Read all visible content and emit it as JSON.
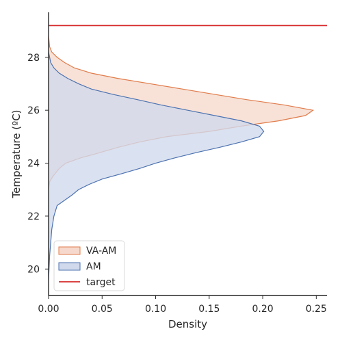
{
  "chart_data": {
    "type": "area",
    "orientation": "horizontal-density",
    "xlabel": "Density",
    "ylabel": "Temperature (ºC)",
    "xlim": [
      0.0,
      0.26
    ],
    "ylim": [
      19.0,
      29.7
    ],
    "x_ticks": [
      0.0,
      0.05,
      0.1,
      0.15,
      0.2,
      0.25
    ],
    "x_tick_labels": [
      "0.00",
      "0.05",
      "0.10",
      "0.15",
      "0.20",
      "0.25"
    ],
    "y_ticks": [
      20,
      22,
      24,
      26,
      28
    ],
    "y_tick_labels": [
      "20",
      "22",
      "24",
      "26",
      "28"
    ],
    "grid": false,
    "legend_position": "lower-left",
    "series": [
      {
        "name": "VA-AM",
        "kind": "density",
        "fill_color": "#f6d9cc",
        "line_color": "#e07b4a",
        "points": [
          {
            "temp": 23.0,
            "density": 0.0
          },
          {
            "temp": 23.3,
            "density": 0.001
          },
          {
            "temp": 23.5,
            "density": 0.004
          },
          {
            "temp": 23.8,
            "density": 0.01
          },
          {
            "temp": 24.0,
            "density": 0.016
          },
          {
            "temp": 24.2,
            "density": 0.03
          },
          {
            "temp": 24.4,
            "density": 0.048
          },
          {
            "temp": 24.6,
            "density": 0.065
          },
          {
            "temp": 24.8,
            "density": 0.085
          },
          {
            "temp": 25.0,
            "density": 0.11
          },
          {
            "temp": 25.2,
            "density": 0.15
          },
          {
            "temp": 25.4,
            "density": 0.18
          },
          {
            "temp": 25.6,
            "density": 0.215
          },
          {
            "temp": 25.8,
            "density": 0.24
          },
          {
            "temp": 26.0,
            "density": 0.247
          },
          {
            "temp": 26.2,
            "density": 0.22
          },
          {
            "temp": 26.4,
            "density": 0.185
          },
          {
            "temp": 26.6,
            "density": 0.155
          },
          {
            "temp": 26.8,
            "density": 0.125
          },
          {
            "temp": 27.0,
            "density": 0.095
          },
          {
            "temp": 27.2,
            "density": 0.065
          },
          {
            "temp": 27.4,
            "density": 0.04
          },
          {
            "temp": 27.6,
            "density": 0.024
          },
          {
            "temp": 27.8,
            "density": 0.015
          },
          {
            "temp": 28.0,
            "density": 0.008
          },
          {
            "temp": 28.2,
            "density": 0.003
          },
          {
            "temp": 28.4,
            "density": 0.001
          },
          {
            "temp": 28.8,
            "density": 0.0
          }
        ]
      },
      {
        "name": "AM",
        "kind": "density",
        "fill_color": "#d1d9ec",
        "line_color": "#4c72b0",
        "points": [
          {
            "temp": 19.6,
            "density": 0.0
          },
          {
            "temp": 20.5,
            "density": 0.001
          },
          {
            "temp": 21.5,
            "density": 0.003
          },
          {
            "temp": 22.0,
            "density": 0.005
          },
          {
            "temp": 22.4,
            "density": 0.008
          },
          {
            "temp": 22.6,
            "density": 0.015
          },
          {
            "temp": 22.8,
            "density": 0.022
          },
          {
            "temp": 23.0,
            "density": 0.028
          },
          {
            "temp": 23.2,
            "density": 0.038
          },
          {
            "temp": 23.4,
            "density": 0.05
          },
          {
            "temp": 23.6,
            "density": 0.068
          },
          {
            "temp": 23.8,
            "density": 0.085
          },
          {
            "temp": 24.0,
            "density": 0.1
          },
          {
            "temp": 24.2,
            "density": 0.118
          },
          {
            "temp": 24.4,
            "density": 0.138
          },
          {
            "temp": 24.6,
            "density": 0.16
          },
          {
            "temp": 24.8,
            "density": 0.18
          },
          {
            "temp": 25.0,
            "density": 0.197
          },
          {
            "temp": 25.2,
            "density": 0.201
          },
          {
            "temp": 25.4,
            "density": 0.197
          },
          {
            "temp": 25.6,
            "density": 0.18
          },
          {
            "temp": 25.8,
            "density": 0.155
          },
          {
            "temp": 26.0,
            "density": 0.13
          },
          {
            "temp": 26.2,
            "density": 0.105
          },
          {
            "temp": 26.4,
            "density": 0.083
          },
          {
            "temp": 26.6,
            "density": 0.06
          },
          {
            "temp": 26.8,
            "density": 0.04
          },
          {
            "temp": 27.0,
            "density": 0.028
          },
          {
            "temp": 27.2,
            "density": 0.018
          },
          {
            "temp": 27.4,
            "density": 0.01
          },
          {
            "temp": 27.6,
            "density": 0.005
          },
          {
            "temp": 27.8,
            "density": 0.002
          },
          {
            "temp": 28.2,
            "density": 0.0
          }
        ]
      },
      {
        "name": "target",
        "kind": "hline",
        "line_color": "#d62728",
        "temp": 29.2
      }
    ]
  }
}
